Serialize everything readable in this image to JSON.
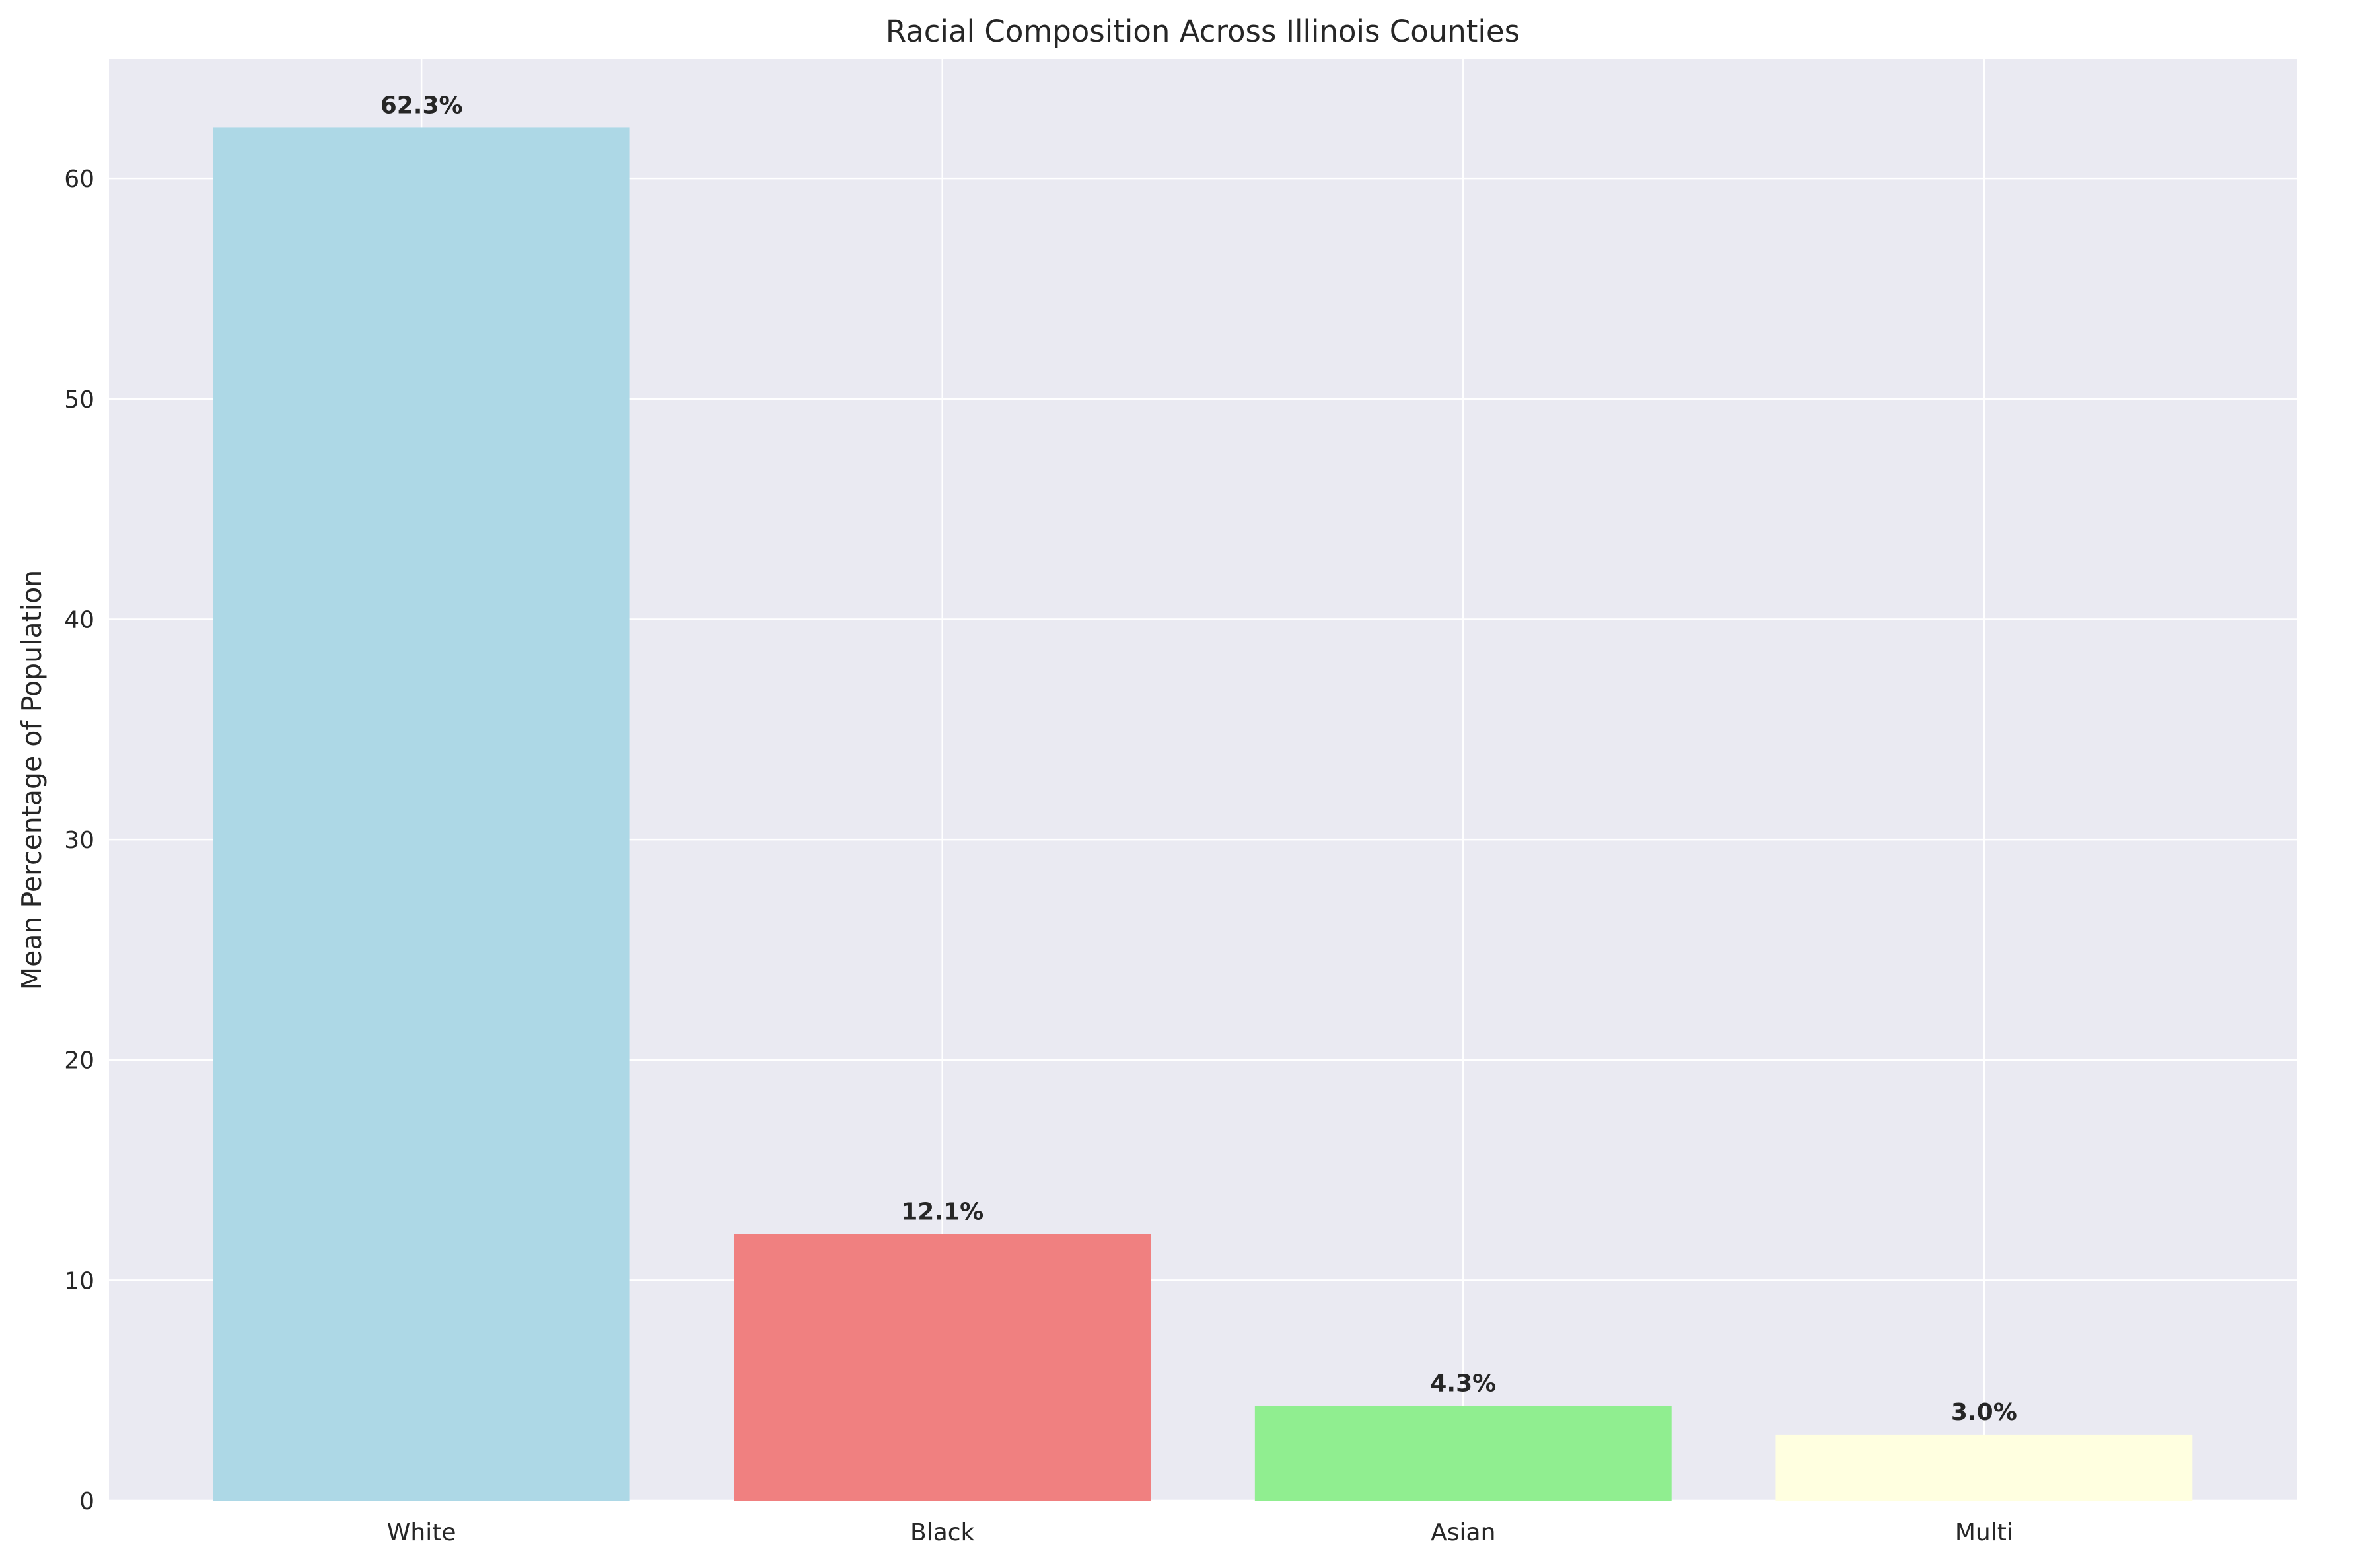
{
  "chart_data": {
    "type": "bar",
    "title": "Racial Composition Across Illinois Counties",
    "xlabel": "",
    "ylabel": "Mean Percentage of Population",
    "categories": [
      "White",
      "Black",
      "Asian",
      "Multi"
    ],
    "values": [
      62.3,
      12.1,
      4.3,
      3.0
    ],
    "data_labels": [
      "62.3%",
      "12.1%",
      "4.3%",
      "3.0%"
    ],
    "colors": [
      "#add8e6",
      "#f08080",
      "#90ee90",
      "#ffffe0"
    ],
    "ylim": [
      0,
      65.4
    ],
    "yticks": [
      0,
      10,
      20,
      30,
      40,
      50,
      60
    ],
    "grid": true,
    "background": "#eaeaf2",
    "legend": "none"
  }
}
